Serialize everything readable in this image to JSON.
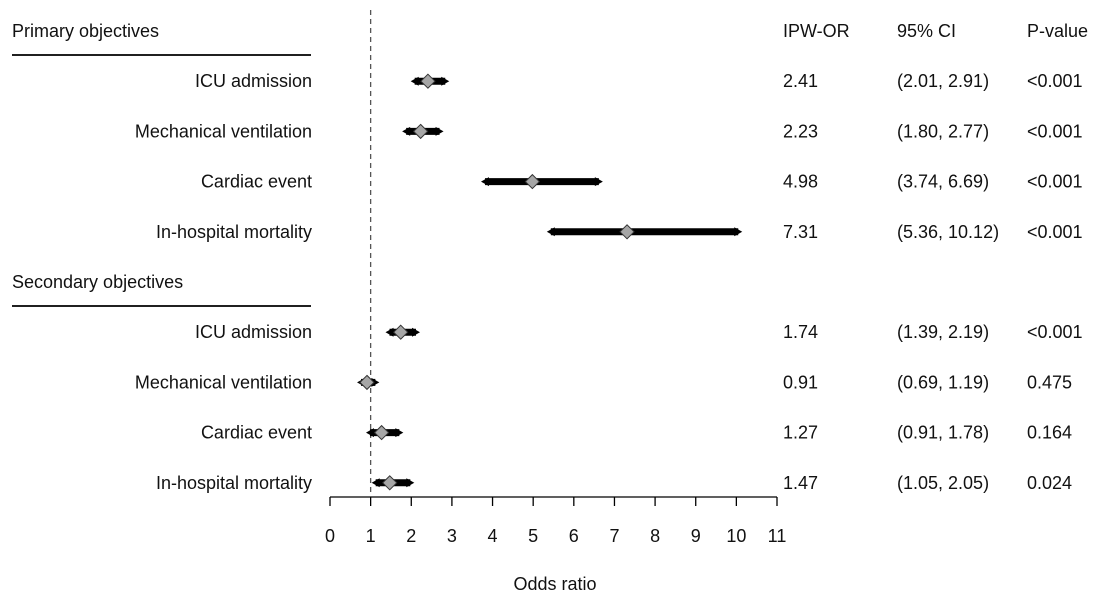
{
  "chart_data": {
    "type": "forest",
    "xlabel": "Odds ratio",
    "xlim": [
      0,
      11
    ],
    "xticks": [
      "0",
      "1",
      "2",
      "3",
      "4",
      "5",
      "6",
      "7",
      "8",
      "9",
      "10",
      "11"
    ],
    "reference_line": 1,
    "column_headers": {
      "estimate": "IPW-OR",
      "ci": "95% CI",
      "pvalue": "P-value"
    },
    "groups": [
      {
        "title": "Primary objectives",
        "rows": [
          {
            "label": "ICU admission",
            "or": 2.41,
            "lower": 2.01,
            "upper": 2.91,
            "or_text": "2.41",
            "ci_text": "(2.01, 2.91)",
            "p_text": "<0.001"
          },
          {
            "label": "Mechanical ventilation",
            "or": 2.23,
            "lower": 1.8,
            "upper": 2.77,
            "or_text": "2.23",
            "ci_text": "(1.80, 2.77)",
            "p_text": "<0.001"
          },
          {
            "label": "Cardiac event",
            "or": 4.98,
            "lower": 3.74,
            "upper": 6.69,
            "or_text": "4.98",
            "ci_text": "(3.74, 6.69)",
            "p_text": "<0.001"
          },
          {
            "label": "In-hospital mortality",
            "or": 7.31,
            "lower": 5.36,
            "upper": 10.12,
            "or_text": "7.31",
            "ci_text": "(5.36, 10.12)",
            "p_text": "<0.001"
          }
        ]
      },
      {
        "title": "Secondary objectives",
        "rows": [
          {
            "label": "ICU admission",
            "or": 1.74,
            "lower": 1.39,
            "upper": 2.19,
            "or_text": "1.74",
            "ci_text": "(1.39, 2.19)",
            "p_text": "<0.001"
          },
          {
            "label": "Mechanical ventilation",
            "or": 0.91,
            "lower": 0.69,
            "upper": 1.19,
            "or_text": "0.91",
            "ci_text": "(0.69, 1.19)",
            "p_text": "0.475"
          },
          {
            "label": "Cardiac event",
            "or": 1.27,
            "lower": 0.91,
            "upper": 1.78,
            "or_text": "1.27",
            "ci_text": "(0.91, 1.78)",
            "p_text": "0.164"
          },
          {
            "label": "In-hospital mortality",
            "or": 1.47,
            "lower": 1.05,
            "upper": 2.05,
            "or_text": "1.47",
            "ci_text": "(1.05, 2.05)",
            "p_text": "0.024"
          }
        ]
      }
    ],
    "colors": {
      "ci_line": "#000000",
      "marker_fill": "#a6a6a6",
      "marker_stroke": "#333333",
      "reference_line": "#555555"
    }
  }
}
